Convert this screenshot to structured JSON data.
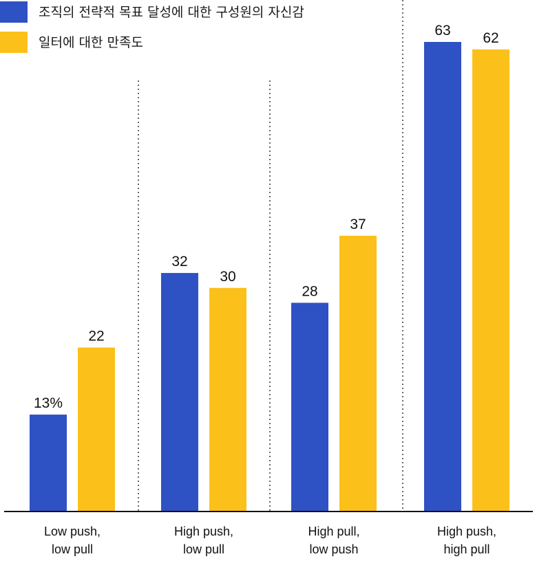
{
  "chart_data": {
    "type": "bar",
    "categories": [
      [
        "Low push,",
        "low pull"
      ],
      [
        "High push,",
        "low pull"
      ],
      [
        "High pull,",
        "low push"
      ],
      [
        "High push,",
        "high pull"
      ]
    ],
    "series": [
      {
        "name": "조직의 전략적 목표 달성에 대한 구성원의 자신감",
        "color": "#2E51C4",
        "values": [
          13,
          32,
          28,
          63
        ],
        "labels": [
          "13%",
          "32",
          "28",
          "63"
        ]
      },
      {
        "name": "일터에 대한 만족도",
        "color": "#FBC11A",
        "values": [
          22,
          30,
          37,
          62
        ],
        "labels": [
          "22",
          "30",
          "37",
          "62"
        ]
      }
    ],
    "ylim": [
      0,
      63
    ],
    "legend_position": "top-left",
    "grid": false,
    "category_separators": "dotted"
  }
}
